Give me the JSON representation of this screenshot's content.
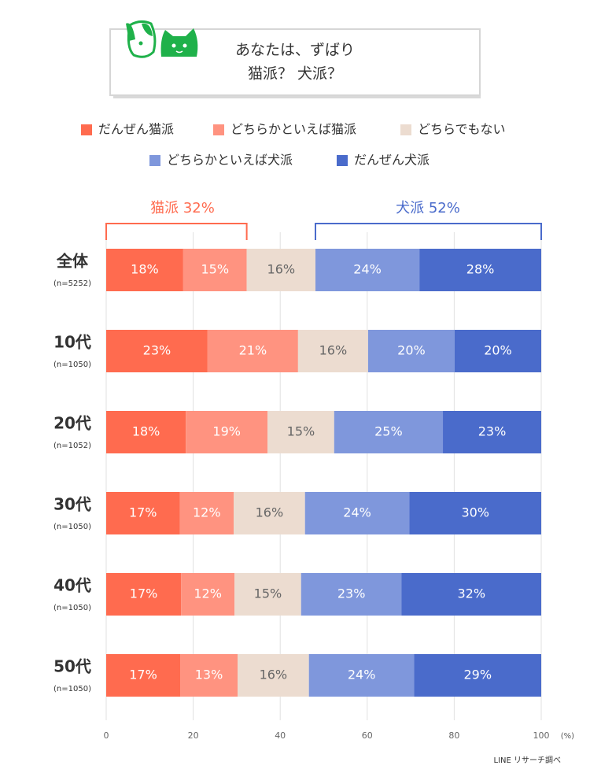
{
  "chart_data": {
    "type": "stacked-bar-horizontal",
    "title_lines": [
      "あなたは、ずばり",
      "猫派？ 犬派？"
    ],
    "categories": [
      "全体",
      "10代",
      "20代",
      "30代",
      "40代",
      "50代"
    ],
    "sample_sizes": [
      "(n=5252)",
      "(n=1050)",
      "(n=1052)",
      "(n=1050)",
      "(n=1050)",
      "(n=1050)"
    ],
    "series": [
      {
        "name": "だんぜん猫派",
        "color": "#ff6b4f",
        "values": [
          17.7,
          23.3,
          18.3,
          16.9,
          17.2,
          17.0
        ],
        "value_labels": [
          "18%",
          "23%",
          "18%",
          "17%",
          "17%",
          "17%"
        ]
      },
      {
        "name": "どちらかといえば猫派",
        "color": "#ff9380",
        "values": [
          14.6,
          20.8,
          18.8,
          12.4,
          12.3,
          13.2
        ],
        "value_labels": [
          "15%",
          "21%",
          "19%",
          "12%",
          "12%",
          "13%"
        ]
      },
      {
        "name": "どちらでもない",
        "color": "#ecdcd0",
        "values": [
          15.8,
          16.1,
          15.3,
          16.4,
          15.3,
          16.4
        ],
        "value_labels": [
          "16%",
          "16%",
          "15%",
          "16%",
          "15%",
          "16%"
        ]
      },
      {
        "name": "どちらかといえば犬派",
        "color": "#7f97dc",
        "values": [
          23.9,
          19.9,
          25.0,
          24.0,
          23.1,
          24.2
        ],
        "value_labels": [
          "24%",
          "20%",
          "25%",
          "24%",
          "23%",
          "24%"
        ]
      },
      {
        "name": "だんぜん犬派",
        "color": "#4a6bcb",
        "values": [
          28.0,
          19.9,
          22.6,
          30.3,
          32.1,
          29.2
        ],
        "value_labels": [
          "28%",
          "20%",
          "23%",
          "30%",
          "32%",
          "29%"
        ]
      }
    ],
    "annotations": [
      "猫派 32%",
      "犬派 52%"
    ],
    "xlim": [
      0,
      100
    ],
    "xticks": [
      0,
      20,
      40,
      60,
      80,
      100
    ],
    "xlabel": "(%)",
    "grid": true,
    "source": "LINE リサーチ調べ"
  }
}
